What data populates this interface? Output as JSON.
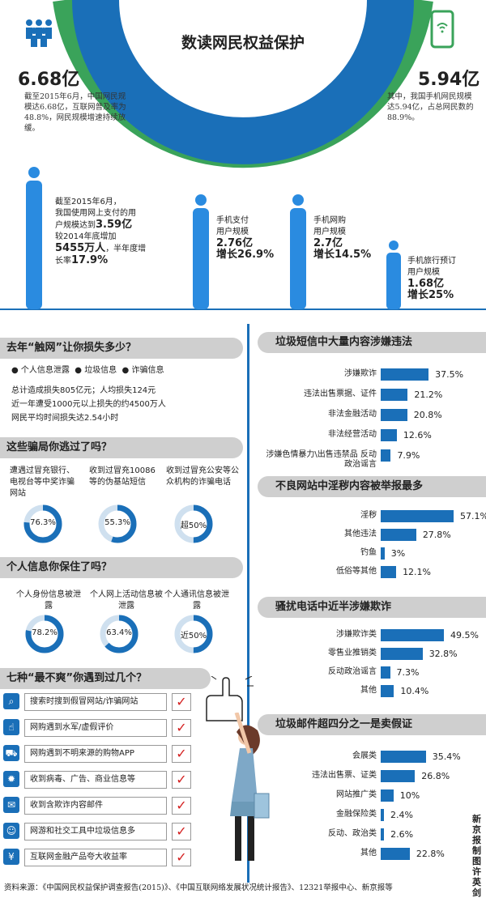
{
  "title": "数读网民权益保护",
  "top": {
    "left_big": "6.68亿",
    "left_desc": "截至2015年6月，中国网民规模达6.68亿，互联网普及率为48.8%，网民规模增速持续放缓。",
    "right_big": "5.94亿",
    "right_desc": "其中，我国手机网民规模达5.94亿，占总网民数的88.9%。",
    "pay_line1": "截至2015年6月，",
    "pay_line2": "我国使用网上支付的用",
    "pay_line3a": "户规模达到",
    "pay_big": "3.59亿",
    "pay_line4a": "较2014年底增加",
    "pay_big2": "5455万人",
    "pay_line4b": "，半年度增",
    "pay_line5a": "长率",
    "pay_big3": "17.9%",
    "stats": [
      {
        "label1": "手机支付",
        "label2": "用户规模",
        "value": "2.76亿",
        "growth": "增长26.9%"
      },
      {
        "label1": "手机网购",
        "label2": "用户规模",
        "value": "2.7亿",
        "growth": "增长14.5%"
      },
      {
        "label1": "手机旅行预订",
        "label2": "用户规模",
        "value": "1.68亿",
        "growth": "增长25%"
      }
    ]
  },
  "loss": {
    "title": "去年“触网”让你损失多少？",
    "legend": [
      "个人信息泄露",
      "垃圾信息",
      "诈骗信息"
    ],
    "line1": "总计造成损失805亿元；人均损失124元",
    "line2": "近一年遭受1000元以上损失的约4500万人",
    "line3": "网民平均时间损失达2.54小时"
  },
  "scam": {
    "title": "这些骗局你逃过了吗？",
    "items": [
      {
        "text": "遭遇过冒充银行、电视台等中奖诈骗网站",
        "pct": "76.3%",
        "value": 76.3
      },
      {
        "text": "收到过冒充10086等的伪基站短信",
        "pct": "55.3%",
        "value": 55.3
      },
      {
        "text": "收到过冒充公安等公众机构的诈骗电话",
        "pct": "超50%",
        "value": 50
      }
    ]
  },
  "privacy": {
    "title": "个人信息你保住了吗？",
    "items": [
      {
        "text": "个人身份信息被泄露",
        "pct": "78.2%",
        "value": 78.2
      },
      {
        "text": "个人网上活动信息被泄露",
        "pct": "63.4%",
        "value": 63.4
      },
      {
        "text": "个人通讯信息被泄露",
        "pct": "近50%",
        "value": 50
      }
    ]
  },
  "seven": {
    "title": "七种“最不爽”你遇到过几个？",
    "items": [
      {
        "text": "搜索时搜到假冒网站/诈骗网站",
        "icon": "search-icon",
        "glyph": "⌕"
      },
      {
        "text": "网购遇到水军/虚假评价",
        "icon": "thumb-icon",
        "glyph": "☝"
      },
      {
        "text": "网购遇到不明来源的购物APP",
        "icon": "cart-icon",
        "glyph": "⛟"
      },
      {
        "text": "收到病毒、广告、商业信息等",
        "icon": "virus-icon",
        "glyph": "✹"
      },
      {
        "text": "收到含欺诈内容邮件",
        "icon": "mail-icon",
        "glyph": "✉"
      },
      {
        "text": "网游和社交工具中垃圾信息多",
        "icon": "chat-icon",
        "glyph": "☺"
      },
      {
        "text": "互联网金融产品夸大收益率",
        "icon": "money-icon",
        "glyph": "¥"
      }
    ],
    "check": "✓"
  },
  "sms": {
    "title": "垃圾短信中大量内容涉嫌违法",
    "bars": [
      {
        "label": "涉嫌欺诈",
        "value": 37.5,
        "text": "37.5%"
      },
      {
        "label": "违法出售票据、证件",
        "value": 21.2,
        "text": "21.2%"
      },
      {
        "label": "非法金融活动",
        "value": 20.8,
        "text": "20.8%"
      },
      {
        "label": "非法经营活动",
        "value": 12.6,
        "text": "12.6%"
      },
      {
        "label": "涉嫌色情暴力\\出售违禁品 反动政治谣言",
        "value": 7.9,
        "text": "7.9%"
      }
    ]
  },
  "web": {
    "title": "不良网站中淫秽内容被举报最多",
    "bars": [
      {
        "label": "淫秽",
        "value": 57.1,
        "text": "57.1%"
      },
      {
        "label": "其他违法",
        "value": 27.8,
        "text": "27.8%"
      },
      {
        "label": "钓鱼",
        "value": 3,
        "text": "3%"
      },
      {
        "label": "低俗等其他",
        "value": 12.1,
        "text": "12.1%"
      }
    ]
  },
  "call": {
    "title": "骚扰电话中近半涉嫌欺诈",
    "bars": [
      {
        "label": "涉嫌欺诈类",
        "value": 49.5,
        "text": "49.5%"
      },
      {
        "label": "零售业推销类",
        "value": 32.8,
        "text": "32.8%"
      },
      {
        "label": "反动政治谣言",
        "value": 7.3,
        "text": "7.3%"
      },
      {
        "label": "其他",
        "value": 10.4,
        "text": "10.4%"
      }
    ]
  },
  "mail": {
    "title": "垃圾邮件超四分之一是卖假证",
    "bars": [
      {
        "label": "会展类",
        "value": 35.4,
        "text": "35.4%"
      },
      {
        "label": "违法出售票、证类",
        "value": 26.8,
        "text": "26.8%"
      },
      {
        "label": "网站推广类",
        "value": 10,
        "text": "10%"
      },
      {
        "label": "金融保险类",
        "value": 2.4,
        "text": "2.4%"
      },
      {
        "label": "反动、政治类",
        "value": 2.6,
        "text": "2.6%"
      },
      {
        "label": "其他",
        "value": 22.8,
        "text": "22.8%"
      }
    ]
  },
  "credit": "新京报制图 许英剑",
  "source": "资料来源：《中国网民权益保护调查报告(2015)》、《中国互联网络发展状况统计报告》、12321举报中心、新京报等",
  "colors": {
    "blue": "#1a6fb8",
    "green": "#3aa35a",
    "gray": "#cfcfcf",
    "red": "#d42020"
  }
}
